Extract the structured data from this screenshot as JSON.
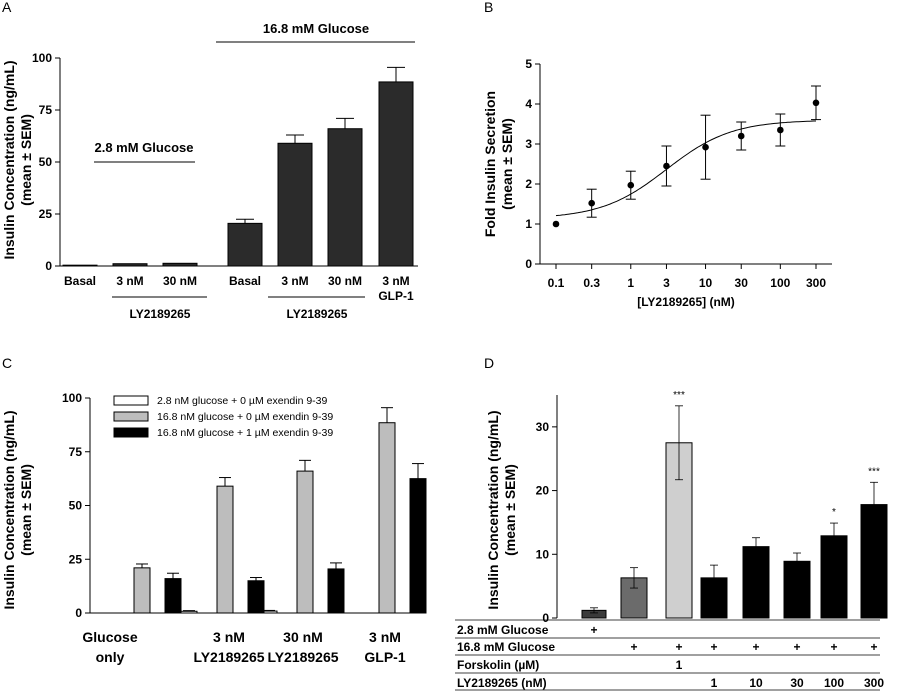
{
  "panels": {
    "A": "A",
    "B": "B",
    "C": "C",
    "D": "D"
  },
  "chart_data": [
    {
      "id": "A",
      "type": "bar",
      "ylabel": "Insulin Concentration (ng/mL)",
      "ylabel2": "(mean ± SEM)",
      "ylim": [
        0,
        100
      ],
      "yticks": [
        "0",
        "25",
        "50",
        "75",
        "100"
      ],
      "categories": [
        "Basal",
        "3 nM",
        "30 nM",
        "Basal",
        "3 nM",
        "30 nM",
        "3 nM"
      ],
      "category_sublabels": [
        "",
        "",
        "",
        "",
        "",
        "",
        "GLP-1"
      ],
      "values": [
        0.4,
        1.1,
        1.3,
        20.5,
        59,
        66,
        88.5
      ],
      "errors": [
        0,
        0,
        0,
        2,
        4,
        5,
        7
      ],
      "group_labels": [
        "LY2189265",
        "LY2189265"
      ],
      "annotations": [
        "2.8 mM Glucose",
        "16.8 mM Glucose"
      ],
      "bar_color": "#2b2b2b"
    },
    {
      "id": "B",
      "type": "scatter",
      "xlabel": "[LY2189265] (nM)",
      "ylabel": "Fold Insulin Secretion",
      "ylabel2": "(mean ± SEM)",
      "x_scale": "log",
      "xticks": [
        "0.1",
        "0.3",
        "1",
        "3",
        "10",
        "30",
        "100",
        "300"
      ],
      "ylim": [
        0,
        5
      ],
      "yticks": [
        "0",
        "1",
        "2",
        "3",
        "4",
        "5"
      ],
      "x": [
        0.1,
        0.3,
        1,
        3,
        10,
        30,
        100,
        300
      ],
      "y": [
        1.0,
        1.52,
        1.97,
        2.45,
        2.92,
        3.2,
        3.35,
        4.03
      ],
      "errors": [
        0,
        0.35,
        0.35,
        0.5,
        0.8,
        0.35,
        0.4,
        0.42
      ],
      "fit": {
        "bottom": 1.13,
        "top": 3.6,
        "ec50": 3,
        "hill": 1
      }
    },
    {
      "id": "C",
      "type": "bar",
      "ylabel": "Insulin Concentration (ng/mL)",
      "ylabel2": "(mean ± SEM)",
      "ylim": [
        0,
        100
      ],
      "yticks": [
        "0",
        "25",
        "50",
        "75",
        "100"
      ],
      "categories": [
        "Glucose",
        "3 nM",
        "30 nM",
        "3 nM"
      ],
      "category_sublabels": [
        "only",
        "LY2189265",
        "LY2189265",
        "GLP-1"
      ],
      "series": [
        {
          "name": "2.8 nM glucose + 0 µM exendin 9-39",
          "color": "#ffffff",
          "values": [
            null,
            0.8,
            0.9,
            null
          ],
          "errors": [
            0,
            0.3,
            0.3,
            0
          ]
        },
        {
          "name": "16.8 nM glucose + 0 µM exendin 9-39",
          "color": "#bdbdbd",
          "values": [
            21,
            59,
            66,
            88.5
          ],
          "errors": [
            1.8,
            4,
            5,
            7
          ]
        },
        {
          "name": "16.8 nM glucose + 1 µM exendin 9-39",
          "color": "#000000",
          "values": [
            16,
            15,
            20.5,
            62.5
          ],
          "errors": [
            2.5,
            1.5,
            2.8,
            7
          ]
        }
      ],
      "legend_position": "top-left"
    },
    {
      "id": "D",
      "type": "bar",
      "ylabel": "Insulin Concentration (ng/mL)",
      "ylabel2": "(mean ± SEM)",
      "ylim": [
        0,
        35
      ],
      "yticks": [
        "0",
        "10",
        "20",
        "30"
      ],
      "values": [
        1.2,
        6.3,
        27.5,
        6.3,
        11.2,
        8.9,
        12.9,
        17.8
      ],
      "errors": [
        0.4,
        1.6,
        5.8,
        2.0,
        1.4,
        1.3,
        2.0,
        3.5
      ],
      "colors": [
        "#3a3a3a",
        "#6b6b6b",
        "#cfcfcf",
        "#000000",
        "#000000",
        "#000000",
        "#000000",
        "#000000"
      ],
      "significance": [
        "",
        "",
        "***",
        "",
        "",
        "",
        "*",
        "***"
      ],
      "table_rows": [
        {
          "label": "2.8 mM Glucose",
          "cells": [
            "+",
            "",
            "",
            "",
            "",
            "",
            "",
            ""
          ]
        },
        {
          "label": "16.8 mM Glucose",
          "cells": [
            "",
            "+",
            "+",
            "+",
            "+",
            "+",
            "+",
            "+"
          ]
        },
        {
          "label": "Forskolin (µM)",
          "cells": [
            "",
            "",
            "1",
            "",
            "",
            "",
            "",
            ""
          ]
        },
        {
          "label": "LY2189265 (nM)",
          "cells": [
            "",
            "",
            "",
            "1",
            "10",
            "30",
            "100",
            "300"
          ]
        }
      ]
    }
  ]
}
